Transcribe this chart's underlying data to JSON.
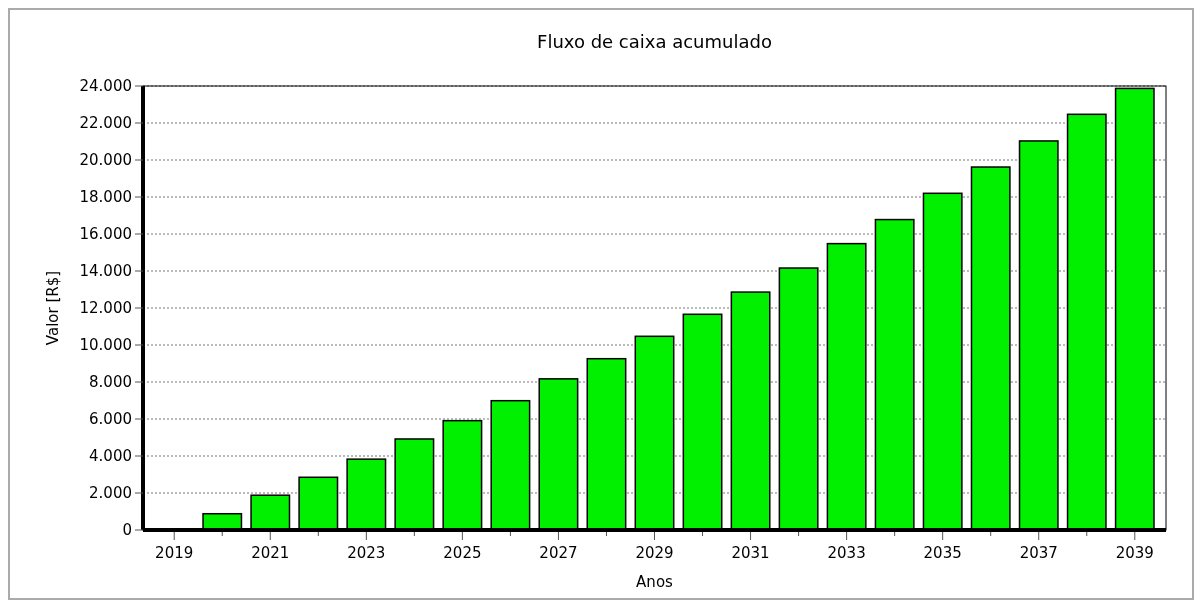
{
  "chart_data": {
    "type": "bar",
    "title": "Fluxo de caixa acumulado",
    "xlabel": "Anos",
    "ylabel": "Valor [R$]",
    "categories": [
      "2019",
      null,
      "2021",
      null,
      "2023",
      null,
      "2025",
      null,
      "2027",
      null,
      "2029",
      null,
      "2031",
      null,
      "2033",
      null,
      "2035",
      null,
      "2037",
      null,
      "2039"
    ],
    "values": [
      0,
      880,
      1880,
      2850,
      3830,
      4920,
      5910,
      6990,
      8170,
      9260,
      10470,
      11660,
      12860,
      14160,
      15480,
      16780,
      18200,
      19620,
      21030,
      22470,
      23870
    ],
    "color": "#00f000",
    "ylim": [
      0,
      24000
    ],
    "yticks": [
      0,
      {
        "value": 2000,
        "label": "2.000"
      },
      {
        "value": 4000,
        "label": "4.000"
      },
      {
        "value": 6000,
        "label": "6.000"
      },
      {
        "value": 8000,
        "label": "8.000"
      },
      {
        "value": 10000,
        "label": "10.000"
      },
      {
        "value": 12000,
        "label": "12.000"
      },
      {
        "value": 14000,
        "label": "14.000"
      },
      {
        "value": 16000,
        "label": "16.000"
      },
      {
        "value": 18000,
        "label": "18.000"
      },
      {
        "value": 20000,
        "label": "20.000"
      },
      {
        "value": 22000,
        "label": "22.000"
      },
      {
        "value": 24000,
        "label": "24.000"
      }
    ],
    "grid": "y"
  }
}
